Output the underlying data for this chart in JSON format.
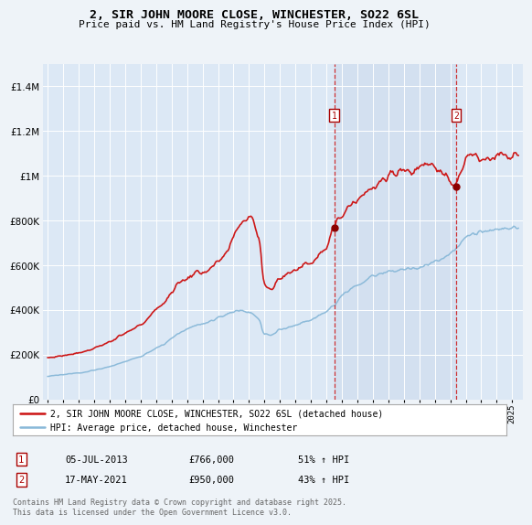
{
  "title": "2, SIR JOHN MOORE CLOSE, WINCHESTER, SO22 6SL",
  "subtitle": "Price paid vs. HM Land Registry's House Price Index (HPI)",
  "background_color": "#eef3f8",
  "plot_bg_color": "#dce8f5",
  "shaded_region_color": "#cddcee",
  "legend_line1": "2, SIR JOHN MOORE CLOSE, WINCHESTER, SO22 6SL (detached house)",
  "legend_line2": "HPI: Average price, detached house, Winchester",
  "annotation1_date": "05-JUL-2013",
  "annotation1_price": "£766,000",
  "annotation1_hpi": "51% ↑ HPI",
  "annotation2_date": "17-MAY-2021",
  "annotation2_price": "£950,000",
  "annotation2_hpi": "43% ↑ HPI",
  "footer": "Contains HM Land Registry data © Crown copyright and database right 2025.\nThis data is licensed under the Open Government Licence v3.0.",
  "red_color": "#cc1111",
  "blue_color": "#88b8d8",
  "ylim": [
    0,
    1500000
  ],
  "yticks": [
    0,
    200000,
    400000,
    600000,
    800000,
    1000000,
    1200000,
    1400000
  ],
  "xlim_start": 1994.7,
  "xlim_end": 2025.7,
  "marker1_x": 2013.5,
  "marker1_y_red": 766000,
  "marker2_x": 2021.38,
  "marker2_y_red": 950000
}
